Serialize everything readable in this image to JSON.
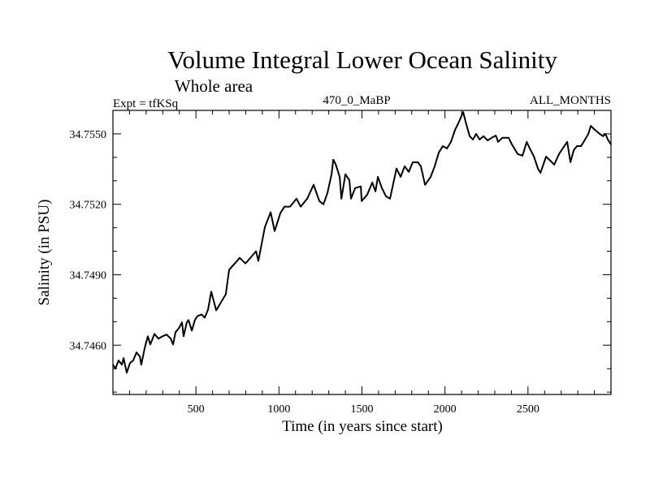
{
  "chart_data": {
    "type": "line",
    "title": "Volume Integral Lower Ocean Salinity",
    "subtitle": "Whole area",
    "annotations": {
      "left": "Expt = tfKSq",
      "center": "470_0_MaBP",
      "right": "ALL_MONTHS"
    },
    "xlabel": "Time (in years since start)",
    "ylabel": "Salinity (in PSU)",
    "xlim": [
      0,
      3000
    ],
    "ylim": [
      34.7439,
      34.756
    ],
    "x_ticks": [
      500,
      1000,
      1500,
      2000,
      2500
    ],
    "x_tick_labels": [
      "500",
      "1000",
      "1500",
      "2000",
      "2500"
    ],
    "x_minor_step": 100,
    "y_ticks": [
      34.746,
      34.749,
      34.752,
      34.755
    ],
    "y_tick_labels": [
      "34.7460",
      "34.7490",
      "34.7520",
      "34.7550"
    ],
    "y_minor_step": 0.001,
    "grid": false,
    "legend": "none",
    "series": [
      {
        "name": "Salinity",
        "color": "#000000",
        "x": [
          0,
          15,
          34,
          54,
          64,
          83,
          103,
          122,
          142,
          162,
          171,
          191,
          210,
          225,
          250,
          274,
          299,
          323,
          348,
          362,
          377,
          397,
          416,
          426,
          445,
          455,
          475,
          494,
          509,
          534,
          553,
          573,
          592,
          622,
          680,
          700,
          764,
          798,
          862,
          876,
          915,
          950,
          974,
          1008,
          1033,
          1067,
          1106,
          1131,
          1170,
          1209,
          1243,
          1268,
          1292,
          1317,
          1327,
          1341,
          1366,
          1376,
          1400,
          1424,
          1434,
          1459,
          1493,
          1498,
          1532,
          1562,
          1581,
          1596,
          1620,
          1645,
          1669,
          1708,
          1733,
          1757,
          1782,
          1806,
          1836,
          1855,
          1880,
          1914,
          1938,
          1963,
          1987,
          2012,
          2036,
          2061,
          2085,
          2110,
          2124,
          2149,
          2169,
          2188,
          2208,
          2232,
          2257,
          2281,
          2306,
          2320,
          2345,
          2384,
          2403,
          2438,
          2467,
          2492,
          2511,
          2536,
          2560,
          2575,
          2589,
          2609,
          2634,
          2658,
          2687,
          2712,
          2736,
          2756,
          2776,
          2795,
          2820,
          2844,
          2864,
          2878,
          2903,
          2932,
          2952,
          2966,
          2981,
          3000
        ],
        "y": [
          34.74517,
          34.745,
          34.74535,
          34.74517,
          34.74545,
          34.74483,
          34.74524,
          34.74535,
          34.74569,
          34.74552,
          34.74517,
          34.74586,
          34.74638,
          34.74603,
          34.74648,
          34.74628,
          34.74638,
          34.74645,
          34.74628,
          34.74603,
          34.74655,
          34.74672,
          34.74697,
          34.74638,
          34.74697,
          34.74707,
          34.74662,
          34.74707,
          34.74724,
          34.74731,
          34.74717,
          34.74752,
          34.74828,
          34.74748,
          34.74817,
          34.74921,
          34.74972,
          34.74948,
          34.75,
          34.74959,
          34.75103,
          34.75166,
          34.75086,
          34.75162,
          34.7519,
          34.7519,
          34.75224,
          34.7519,
          34.75224,
          34.75283,
          34.75214,
          34.752,
          34.75248,
          34.75328,
          34.7539,
          34.75372,
          34.75317,
          34.75224,
          34.75328,
          34.75303,
          34.75224,
          34.75269,
          34.75276,
          34.75214,
          34.75241,
          34.75293,
          34.75255,
          34.75317,
          34.75269,
          34.75234,
          34.75224,
          34.75352,
          34.75317,
          34.75362,
          34.75338,
          34.75379,
          34.75379,
          34.75362,
          34.75283,
          34.75317,
          34.75362,
          34.75421,
          34.75448,
          34.75438,
          34.75466,
          34.75517,
          34.75552,
          34.75593,
          34.75552,
          34.7549,
          34.75476,
          34.755,
          34.75476,
          34.7549,
          34.75472,
          34.75483,
          34.75493,
          34.75466,
          34.75483,
          34.75483,
          34.75455,
          34.75414,
          34.75407,
          34.75466,
          34.75438,
          34.75403,
          34.75352,
          34.75334,
          34.75362,
          34.75403,
          34.75386,
          34.75369,
          34.75414,
          34.75441,
          34.75466,
          34.75379,
          34.75431,
          34.75448,
          34.75448,
          34.75476,
          34.755,
          34.75534,
          34.75517,
          34.755,
          34.7549,
          34.755,
          34.75476,
          34.75455
        ]
      }
    ]
  }
}
